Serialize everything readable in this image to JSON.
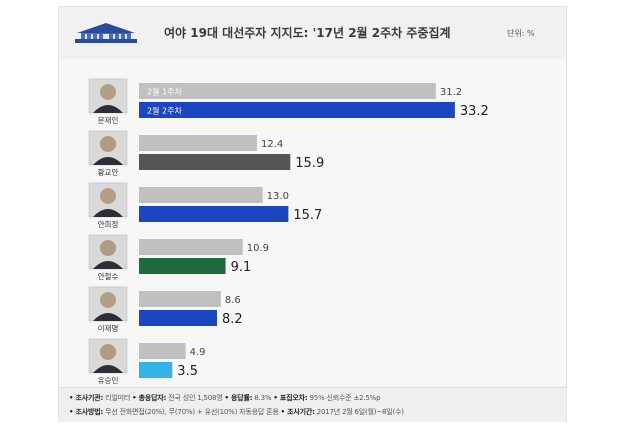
{
  "header": {
    "title": "여야 19대 대선주자 지지도: '17년 2월 2주차 주중집계",
    "unit": "단위: %"
  },
  "chart_data": {
    "type": "bar",
    "orientation": "horizontal",
    "categories": [
      "문재인",
      "황교안",
      "안희정",
      "안철수",
      "이재명",
      "유승민"
    ],
    "series": [
      {
        "name": "2월 1주차",
        "values": [
          31.2,
          12.4,
          13.0,
          10.9,
          8.6,
          4.9
        ],
        "colors": [
          "#c0c0c0"
        ]
      },
      {
        "name": "2월 2주차",
        "values": [
          33.2,
          15.9,
          15.7,
          9.1,
          8.2,
          3.5
        ],
        "colors": [
          "#1a47c0",
          "#555555",
          "#1a47c0",
          "#1f6b3d",
          "#1a47c0",
          "#33b3e6"
        ]
      }
    ],
    "xlim": [
      0,
      35
    ],
    "grid": false,
    "legend": "inside first bars"
  },
  "footer": {
    "line1": [
      {
        "label": "조사기관",
        "value": "리얼미터"
      },
      {
        "label": "총응답자",
        "value": "전국 성인 1,508명"
      },
      {
        "label": "응답률",
        "value": "8.3%"
      },
      {
        "label": "표집오차",
        "value": "95% 신뢰수준 ±2.5%p"
      }
    ],
    "line2": [
      {
        "label": "조사방법",
        "value": "무선 전화면접(20%), 무(70%) + 유선(10%) 자동응답 혼용"
      },
      {
        "label": "조사기간",
        "value": "2017년 2월 6일(월)~8일(수)"
      }
    ]
  }
}
